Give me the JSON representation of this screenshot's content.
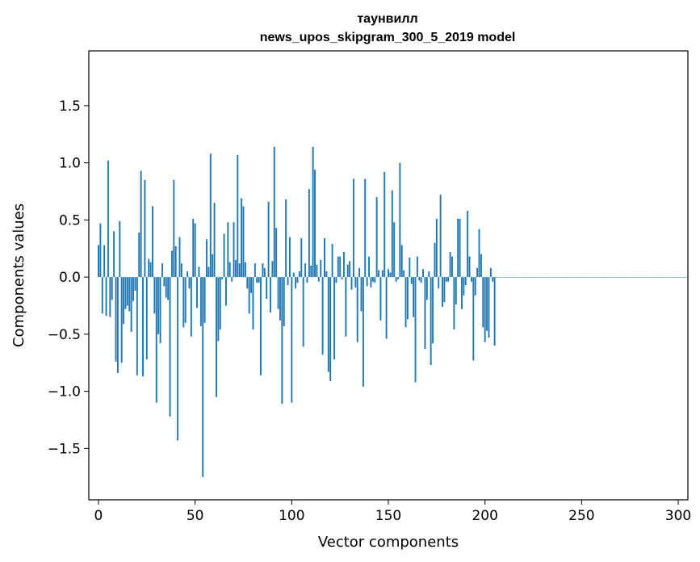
{
  "chart_data": {
    "type": "bar",
    "title": "таунвилл",
    "subtitle": "news_upos_skipgram_300_5_2019 model",
    "xlabel": "Vector components",
    "ylabel": "Components values",
    "xlim": [
      -5,
      305
    ],
    "ylim": [
      -1.95,
      1.98
    ],
    "x_ticks": [
      0,
      50,
      100,
      150,
      200,
      250,
      300
    ],
    "x_tick_labels": [
      "0",
      "50",
      "100",
      "150",
      "200",
      "250",
      "300"
    ],
    "y_ticks": [
      -1.5,
      -1.0,
      -0.5,
      0.0,
      0.5,
      1.0,
      1.5
    ],
    "y_tick_labels": [
      "−1.5",
      "−1.0",
      "−0.5",
      "0.0",
      "0.5",
      "1.0",
      "1.5"
    ],
    "bar_color": "#1f77b4",
    "values": [
      0.28,
      0.47,
      -0.32,
      0.28,
      -0.34,
      1.02,
      -0.35,
      -0.2,
      0.4,
      -0.74,
      -0.84,
      0.49,
      -0.75,
      -0.41,
      -0.28,
      -0.25,
      -0.3,
      -0.48,
      -0.21,
      -0.12,
      -0.86,
      0.39,
      0.93,
      -0.87,
      0.85,
      -0.72,
      0.16,
      0.13,
      0.62,
      -0.32,
      -1.1,
      -0.5,
      -0.58,
      0.12,
      -0.08,
      -0.18,
      -0.2,
      -1.22,
      0.23,
      0.85,
      0.27,
      -1.43,
      0.35,
      0.12,
      -0.44,
      -0.4,
      0.05,
      -0.1,
      -0.52,
      0.51,
      0.47,
      -0.27,
      0.09,
      -0.43,
      -1.75,
      -0.4,
      0.33,
      0.09,
      1.08,
      0.2,
      0.65,
      -1.05,
      -0.56,
      -0.46,
      -0.02,
      0.38,
      -0.25,
      0.48,
      0.13,
      -0.04,
      0.48,
      0.15,
      1.07,
      0.12,
      0.69,
      0.62,
      0.13,
      -0.1,
      -0.32,
      -0.14,
      -0.46,
      0.12,
      -0.05,
      -0.05,
      -0.86,
      0.12,
      0.08,
      -0.19,
      0.66,
      -0.31,
      0.14,
      1.14,
      0.43,
      -0.28,
      -0.38,
      -1.11,
      -0.43,
      0.68,
      -0.07,
      0.35,
      -1.1,
      0.04,
      -0.1,
      -0.05,
      0.05,
      0.34,
      -0.61,
      0.12,
      -0.05,
      0.77,
      0.1,
      1.14,
      0.94,
      0.11,
      -0.04,
      0.15,
      -0.68,
      0.34,
      0.05,
      -0.83,
      -0.91,
      0.29,
      -0.72,
      -0.05,
      0.18,
      0.18,
      -0.02,
      0.22,
      -0.52,
      0.11,
      0.14,
      -0.11,
      0.86,
      -0.09,
      -0.57,
      0.08,
      -0.3,
      -0.96,
      0.86,
      -0.08,
      0.18,
      -0.09,
      -0.04,
      -0.05,
      0.7,
      0.06,
      -0.38,
      0.06,
      0.92,
      -0.54,
      0.07,
      0.04,
      0.76,
      0.48,
      -0.04,
      -0.02,
      1.0,
      0.28,
      0.06,
      -0.44,
      -0.37,
      0.17,
      -0.06,
      -0.35,
      -0.92,
      0.18,
      -0.03,
      -0.05,
      0.07,
      -0.63,
      -0.2,
      0.05,
      -0.77,
      -0.58,
      0.3,
      0.51,
      -0.1,
      0.72,
      -0.26,
      -0.22,
      -0.04,
      -0.04,
      0.22,
      0.18,
      -0.46,
      -0.24,
      0.51,
      0.51,
      -0.28,
      -0.16,
      -0.07,
      0.58,
      0.18,
      -0.04,
      -0.73,
      -0.16,
      0.08,
      0.42,
      0.2,
      -0.44,
      -0.57,
      -0.47,
      -0.53,
      0.08,
      -0.04,
      -0.6,
      0.0,
      0.0,
      0.0,
      0.0,
      0.0,
      0.0,
      0.0,
      0.0,
      0.0,
      0.0,
      0.0,
      0.0,
      0.0,
      0.0,
      0.0,
      0.0,
      0.0,
      0.0,
      0.0,
      0.0,
      0.0,
      0.0,
      0.0,
      0.0,
      0.0,
      0.0,
      0.0,
      0.0,
      0.0,
      0.0,
      0.0,
      0.0,
      0.0,
      0.0,
      0.0,
      0.0,
      0.0,
      0.0,
      0.0,
      0.0,
      0.0,
      0.0,
      0.0,
      0.0,
      0.0,
      0.0,
      0.0,
      0.0,
      0.0,
      0.0,
      0.0,
      0.0,
      0.0,
      0.0,
      0.0,
      0.0,
      0.0,
      0.0,
      0.0,
      0.0,
      0.0,
      0.0,
      0.0,
      0.0,
      0.0,
      0.0,
      0.0,
      0.0,
      0.0,
      0.0,
      0.0,
      0.0,
      0.0,
      0.0,
      0.0,
      0.0,
      0.0,
      0.0,
      0.0,
      0.0,
      0.0,
      0.0,
      0.0,
      0.0,
      0.0,
      0.0,
      0.0,
      0.0,
      0.0,
      0.0,
      0.0,
      0.0,
      0.0,
      0.0,
      0.0,
      0.0,
      0.0,
      0.0,
      0.0
    ]
  }
}
